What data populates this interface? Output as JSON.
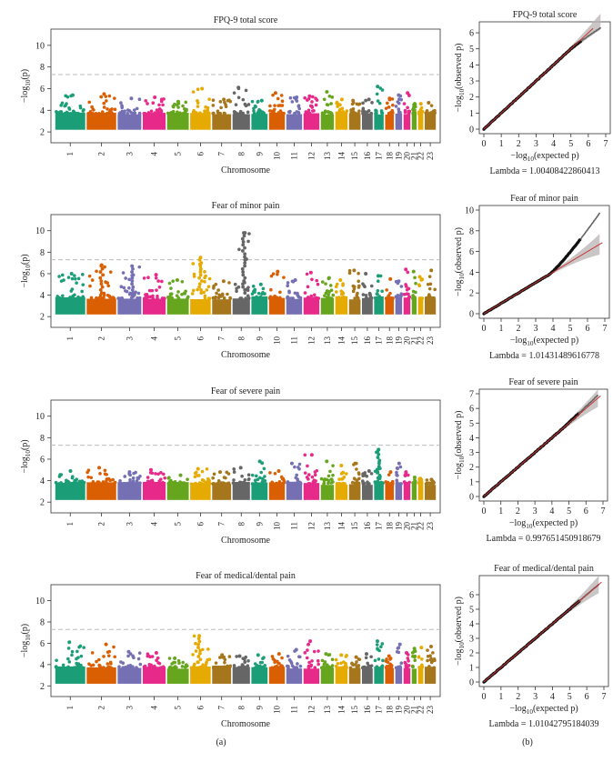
{
  "figure": {
    "panel_a_label": "(a)",
    "panel_b_label": "(b)",
    "manhattan_xlabel": "Chromosome",
    "manhattan_ylabel_prefix": "−log",
    "manhattan_ylabel_sub": "10",
    "manhattan_ylabel_suffix": "(p)",
    "qq_xlabel_prefix": "−log",
    "qq_xlabel_sub": "10",
    "qq_xlabel_suffix": "(expected p)",
    "qq_ylabel_prefix": "−log",
    "qq_ylabel_sub": "10",
    "qq_ylabel_suffix": "(observed p)"
  },
  "chart_data": [
    {
      "type": "scatter",
      "subtype": "manhattan",
      "title": "FPQ-9 total score",
      "xlabel": "Chromosome",
      "ylabel": "−log10(p)",
      "ylim": [
        1,
        11.5
      ],
      "yticks": [
        2,
        4,
        6,
        8,
        10
      ],
      "threshold": 7.3,
      "categories": [
        "1",
        "2",
        "3",
        "4",
        "5",
        "6",
        "7",
        "8",
        "9",
        "10",
        "11",
        "12",
        "13",
        "14",
        "15",
        "16",
        "17",
        "18",
        "19",
        "20",
        "21",
        "22",
        "23"
      ],
      "peaks": [
        5.4,
        5.5,
        5.1,
        5.2,
        4.8,
        6.0,
        5.0,
        6.1,
        4.9,
        5.6,
        5.2,
        5.3,
        5.7,
        5.0,
        4.9,
        5.0,
        6.2,
        5.1,
        5.4,
        5.6,
        4.6,
        4.6,
        4.7
      ]
    },
    {
      "type": "scatter",
      "subtype": "qq",
      "title": "FPQ-9 total score",
      "xlabel": "−log10(expected p)",
      "ylabel": "−log10(observed p)",
      "xlim": [
        0,
        7
      ],
      "ylim": [
        0,
        6.4
      ],
      "xticks": [
        0,
        1,
        2,
        3,
        4,
        5,
        6,
        7
      ],
      "yticks": [
        0,
        1,
        2,
        3,
        4,
        5,
        6
      ],
      "max_expected": 6.7,
      "tail_start": 5.0,
      "tail_end_observed": 6.3,
      "band_at_max": 0.5,
      "lambda_text": "Lambda = 1.00408422860413"
    },
    {
      "type": "scatter",
      "subtype": "manhattan",
      "title": "Fear of minor pain",
      "xlabel": "Chromosome",
      "ylabel": "−log10(p)",
      "ylim": [
        1,
        11.5
      ],
      "yticks": [
        2,
        4,
        6,
        8,
        10
      ],
      "threshold": 7.3,
      "categories": [
        "1",
        "2",
        "3",
        "4",
        "5",
        "6",
        "7",
        "8",
        "9",
        "10",
        "11",
        "12",
        "13",
        "14",
        "15",
        "16",
        "17",
        "18",
        "19",
        "20",
        "21",
        "22",
        "23"
      ],
      "peaks": [
        6.0,
        6.8,
        6.7,
        5.9,
        5.4,
        7.5,
        5.3,
        9.8,
        5.0,
        6.2,
        5.4,
        6.1,
        5.6,
        5.4,
        6.3,
        6.0,
        5.8,
        5.5,
        5.3,
        6.4,
        6.2,
        5.7,
        6.3
      ]
    },
    {
      "type": "scatter",
      "subtype": "qq",
      "title": "Fear of minor pain",
      "xlabel": "−log10(expected p)",
      "ylabel": "−log10(observed p)",
      "xlim": [
        0,
        7
      ],
      "ylim": [
        0,
        10
      ],
      "xticks": [
        0,
        1,
        2,
        3,
        4,
        5,
        6,
        7
      ],
      "yticks": [
        0,
        2,
        4,
        6,
        8,
        10
      ],
      "max_expected": 6.7,
      "tail_start": 3.8,
      "tail_end_observed": 9.7,
      "band_at_max": 1.0,
      "lambda_text": "Lambda = 1.01431489616778"
    },
    {
      "type": "scatter",
      "subtype": "manhattan",
      "title": "Fear of severe pain",
      "xlabel": "Chromosome",
      "ylabel": "−log10(p)",
      "ylim": [
        1,
        11.5
      ],
      "yticks": [
        2,
        4,
        6,
        8,
        10
      ],
      "threshold": 7.3,
      "categories": [
        "1",
        "2",
        "3",
        "4",
        "5",
        "6",
        "7",
        "8",
        "9",
        "10",
        "11",
        "12",
        "13",
        "14",
        "15",
        "16",
        "17",
        "18",
        "19",
        "20",
        "21",
        "22",
        "23"
      ],
      "peaks": [
        4.9,
        5.2,
        4.8,
        5.0,
        4.5,
        5.1,
        4.8,
        5.2,
        5.8,
        4.9,
        5.6,
        6.4,
        5.8,
        5.4,
        5.6,
        4.9,
        6.9,
        4.8,
        5.6,
        4.8,
        4.3,
        4.2,
        4.1
      ]
    },
    {
      "type": "scatter",
      "subtype": "qq",
      "title": "Fear of severe pain",
      "xlabel": "−log10(expected p)",
      "ylabel": "−log10(observed p)",
      "xlim": [
        0,
        7
      ],
      "ylim": [
        0,
        7
      ],
      "xticks": [
        0,
        1,
        2,
        3,
        4,
        5,
        6,
        7
      ],
      "yticks": [
        0,
        1,
        2,
        3,
        4,
        5,
        6,
        7
      ],
      "max_expected": 6.7,
      "tail_start": 4.4,
      "tail_end_observed": 6.9,
      "band_at_max": 0.6,
      "lambda_text": "Lambda = 0.997651450918679"
    },
    {
      "type": "scatter",
      "subtype": "manhattan",
      "title": "Fear of medical/dental pain",
      "xlabel": "Chromosome",
      "ylabel": "−log10(p)",
      "ylim": [
        1,
        11.5
      ],
      "yticks": [
        2,
        4,
        6,
        8,
        10
      ],
      "threshold": 7.3,
      "categories": [
        "1",
        "2",
        "3",
        "4",
        "5",
        "6",
        "7",
        "8",
        "9",
        "10",
        "11",
        "12",
        "13",
        "14",
        "15",
        "16",
        "17",
        "18",
        "19",
        "20",
        "21",
        "22",
        "23"
      ],
      "peaks": [
        6.1,
        5.9,
        5.2,
        5.1,
        4.6,
        6.7,
        4.9,
        4.8,
        4.9,
        5.0,
        5.4,
        6.2,
        5.0,
        4.9,
        4.7,
        5.0,
        6.2,
        4.8,
        5.9,
        5.1,
        5.5,
        5.6,
        5.7
      ]
    },
    {
      "type": "scatter",
      "subtype": "qq",
      "title": "Fear of medical/dental pain",
      "xlabel": "−log10(expected p)",
      "ylabel": "−log10(observed p)",
      "xlim": [
        0,
        7
      ],
      "ylim": [
        0,
        7
      ],
      "xticks": [
        0,
        1,
        2,
        3,
        4,
        5,
        6,
        7
      ],
      "yticks": [
        0,
        1,
        2,
        3,
        4,
        5,
        6
      ],
      "max_expected": 6.7,
      "tail_start": 4.6,
      "tail_end_observed": 6.7,
      "band_at_max": 0.6,
      "lambda_text": "Lambda = 1.01042795184039"
    }
  ],
  "chromosome_colors": [
    "#1b9e77",
    "#d95f02",
    "#7570b3",
    "#e7298a",
    "#66a61e",
    "#e6ab02",
    "#a6761d",
    "#666666"
  ]
}
